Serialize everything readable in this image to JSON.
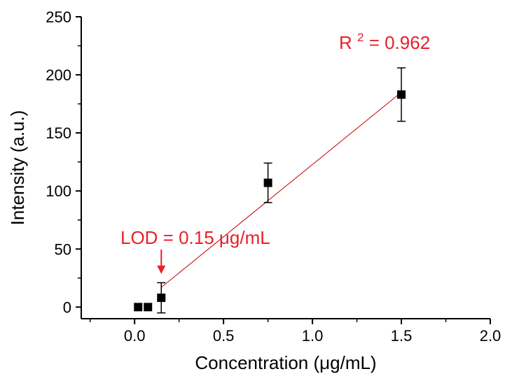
{
  "chart_data": {
    "type": "scatter",
    "title": "",
    "xlabel": "Concentration (μg/mL)",
    "ylabel": "Intensity (a.u.)",
    "xlim": [
      -0.3,
      2.0
    ],
    "ylim": [
      -10,
      250
    ],
    "x_ticks": [
      0.0,
      0.5,
      1.0,
      1.5,
      2.0
    ],
    "x_tick_labels": [
      "0.0",
      "0.5",
      "1.0",
      "1.5",
      "2.0"
    ],
    "y_ticks": [
      0,
      50,
      100,
      150,
      200,
      250
    ],
    "y_tick_labels": [
      "0",
      "50",
      "100",
      "150",
      "200",
      "250"
    ],
    "grid": false,
    "legend": "none",
    "series": [
      {
        "marker": "square",
        "color": "#000000",
        "x": [
          0.02,
          0.075,
          0.15,
          0.75,
          1.5
        ],
        "y": [
          0,
          0,
          8,
          107,
          183
        ],
        "error": [
          null,
          null,
          13,
          17,
          23
        ]
      }
    ],
    "fit_line": {
      "color": "#c00000",
      "x": [
        0.15,
        1.5
      ],
      "y": [
        17,
        185
      ]
    },
    "annotations": {
      "r_squared": {
        "prefix": "R ",
        "superscript": "2",
        "suffix": " = 0.962",
        "color": "#e8202a"
      },
      "lod": {
        "text": "LOD = 0.15 μg/mL",
        "color": "#e8202a",
        "arrow_x": 0.15
      }
    }
  }
}
